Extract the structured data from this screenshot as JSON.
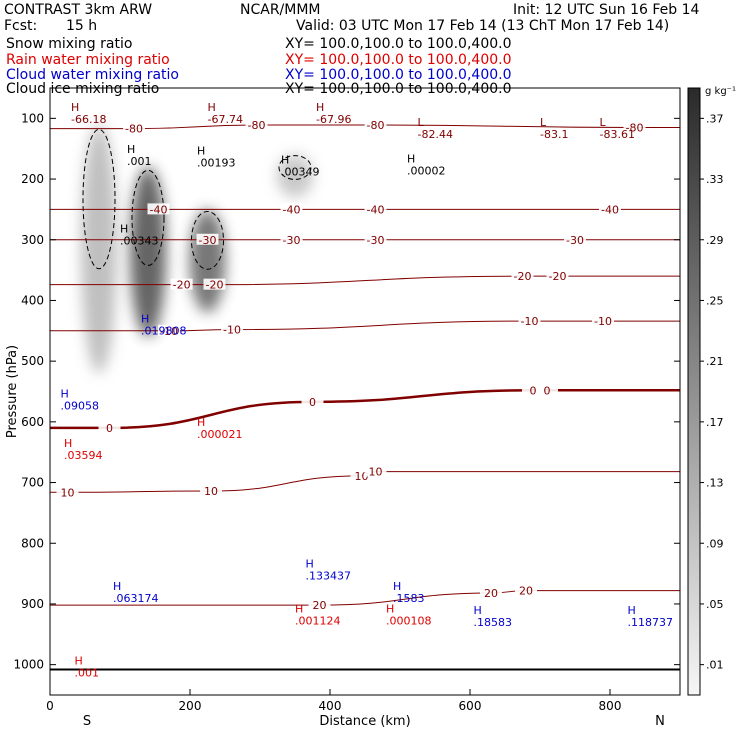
{
  "header": {
    "model": "CONTRAST  3km ARW",
    "org": "NCAR/MMM",
    "init": "Init: 12 UTC Sun 16 Feb 14",
    "fcst_label": "Fcst:",
    "fcst_value": "15 h",
    "valid": "Valid: 03 UTC Mon 17 Feb 14 (13 ChT Mon 17 Feb 14)"
  },
  "legend": [
    {
      "label": "Snow mixing ratio",
      "color": "#000000",
      "xy": "XY= 100.0,100.0 to 100.0,400.0"
    },
    {
      "label": "Rain water mixing ratio",
      "color": "#dd0000",
      "xy": "XY= 100.0,100.0 to 100.0,400.0"
    },
    {
      "label": "Cloud water mixing ratio",
      "color": "#0000cc",
      "xy": "XY= 100.0,100.0 to 100.0,400.0"
    },
    {
      "label": "Cloud ice mixing ratio",
      "color": "#000000",
      "xy": "XY= 100.0,100.0 to 100.0,400.0"
    }
  ],
  "colorbar": {
    "unit": "g kg⁻¹",
    "ticks": [
      ".37",
      ".33",
      ".29",
      ".25",
      ".21",
      ".17",
      ".13",
      ".09",
      ".05",
      ".01"
    ]
  },
  "colors": {
    "temperature": "#800000",
    "rain": "#dd0000",
    "cloud_water": "#0000cc",
    "ice": "#000000"
  },
  "chart_data": {
    "type": "cross-section",
    "xlabel": "Distance (km)",
    "ylabel": "Pressure (hPa)",
    "xlim": [
      0,
      900
    ],
    "ylim": [
      1050,
      50
    ],
    "xticks": [
      "0",
      "200",
      "400",
      "600",
      "800"
    ],
    "yticks": [
      "100",
      "200",
      "300",
      "400",
      "500",
      "600",
      "700",
      "800",
      "900",
      "1000"
    ],
    "endpoints": {
      "left": "S",
      "right": "N"
    },
    "temperature_contours": [
      {
        "label": "-80",
        "positions": [
          {
            "x": 120,
            "p": 117
          },
          {
            "x": 295,
            "p": 111
          },
          {
            "x": 465,
            "p": 111
          },
          {
            "x": 835,
            "p": 115
          }
        ]
      },
      {
        "label": "-40",
        "positions": [
          {
            "x": 155,
            "p": 250
          },
          {
            "x": 345,
            "p": 250
          },
          {
            "x": 465,
            "p": 250
          },
          {
            "x": 800,
            "p": 250
          }
        ]
      },
      {
        "label": "-30",
        "positions": [
          {
            "x": 225,
            "p": 300
          },
          {
            "x": 345,
            "p": 300
          },
          {
            "x": 465,
            "p": 300
          },
          {
            "x": 750,
            "p": 300
          }
        ]
      },
      {
        "label": "-20",
        "positions": [
          {
            "x": 188,
            "p": 374
          },
          {
            "x": 235,
            "p": 374
          },
          {
            "x": 675,
            "p": 360
          },
          {
            "x": 725,
            "p": 360
          }
        ]
      },
      {
        "label": "-10",
        "positions": [
          {
            "x": 170,
            "p": 450
          },
          {
            "x": 260,
            "p": 448
          },
          {
            "x": 685,
            "p": 434
          },
          {
            "x": 790,
            "p": 434
          }
        ]
      },
      {
        "label": "0",
        "positions": [
          {
            "x": 85,
            "p": 610
          },
          {
            "x": 375,
            "p": 567
          },
          {
            "x": 690,
            "p": 548
          },
          {
            "x": 710,
            "p": 548
          }
        ]
      },
      {
        "label": "10",
        "positions": [
          {
            "x": 25,
            "p": 716
          },
          {
            "x": 230,
            "p": 714
          },
          {
            "x": 445,
            "p": 689
          },
          {
            "x": 465,
            "p": 682
          }
        ]
      },
      {
        "label": "20",
        "positions": [
          {
            "x": 385,
            "p": 902
          },
          {
            "x": 630,
            "p": 882
          },
          {
            "x": 680,
            "p": 878
          }
        ]
      }
    ],
    "extrema": [
      {
        "type": "H",
        "value": "-66.18",
        "series": "temperature",
        "x": 30,
        "p": 91
      },
      {
        "type": "H",
        "value": "-67.74",
        "series": "temperature",
        "x": 225,
        "p": 91
      },
      {
        "type": "H",
        "value": "-67.96",
        "series": "temperature",
        "x": 380,
        "p": 91
      },
      {
        "type": "L",
        "value": "-82.44",
        "series": "temperature",
        "x": 525,
        "p": 116
      },
      {
        "type": "L",
        "value": "-83.1",
        "series": "temperature",
        "x": 700,
        "p": 116
      },
      {
        "type": "L",
        "value": "-83.61",
        "series": "temperature",
        "x": 785,
        "p": 116
      },
      {
        "type": "H",
        "value": ".001",
        "series": "ice",
        "x": 110,
        "p": 160
      },
      {
        "type": "H",
        "value": ".00193",
        "series": "ice",
        "x": 210,
        "p": 163
      },
      {
        "type": "H",
        "value": ".00349",
        "series": "ice",
        "x": 330,
        "p": 178
      },
      {
        "type": "H",
        "value": ".00002",
        "series": "ice",
        "x": 510,
        "p": 176
      },
      {
        "type": "H",
        "value": ".00343",
        "series": "ice",
        "x": 100,
        "p": 291
      },
      {
        "type": "H",
        "value": ".019808",
        "series": "cloud_water",
        "x": 130,
        "p": 440
      },
      {
        "type": "H",
        "value": ".09058",
        "series": "cloud_water",
        "x": 15,
        "p": 563
      },
      {
        "type": "H",
        "value": ".000021",
        "series": "rain",
        "x": 210,
        "p": 610
      },
      {
        "type": "H",
        "value": ".03594",
        "series": "rain",
        "x": 20,
        "p": 645
      },
      {
        "type": "H",
        "value": ".063174",
        "series": "cloud_water",
        "x": 90,
        "p": 880
      },
      {
        "type": "H",
        "value": ".133437",
        "series": "cloud_water",
        "x": 365,
        "p": 843
      },
      {
        "type": "H",
        "value": ".001124",
        "series": "rain",
        "x": 350,
        "p": 917
      },
      {
        "type": "H",
        "value": ".1583",
        "series": "cloud_water",
        "x": 490,
        "p": 880
      },
      {
        "type": "H",
        "value": ".000108",
        "series": "rain",
        "x": 480,
        "p": 917
      },
      {
        "type": "H",
        "value": ".18583",
        "series": "cloud_water",
        "x": 605,
        "p": 920
      },
      {
        "type": "H",
        "value": ".118737",
        "series": "cloud_water",
        "x": 825,
        "p": 920
      },
      {
        "type": "H",
        "value": ".001",
        "series": "rain",
        "x": 35,
        "p": 1003
      }
    ],
    "snow_plumes": [
      {
        "x": 70,
        "p_top": 110,
        "p_bottom": 520,
        "intensity": 0.35
      },
      {
        "x": 140,
        "p_top": 180,
        "p_bottom": 460,
        "intensity": 0.85
      },
      {
        "x": 225,
        "p_top": 250,
        "p_bottom": 420,
        "intensity": 0.75
      },
      {
        "x": 350,
        "p_top": 160,
        "p_bottom": 230,
        "intensity": 0.3
      }
    ]
  }
}
